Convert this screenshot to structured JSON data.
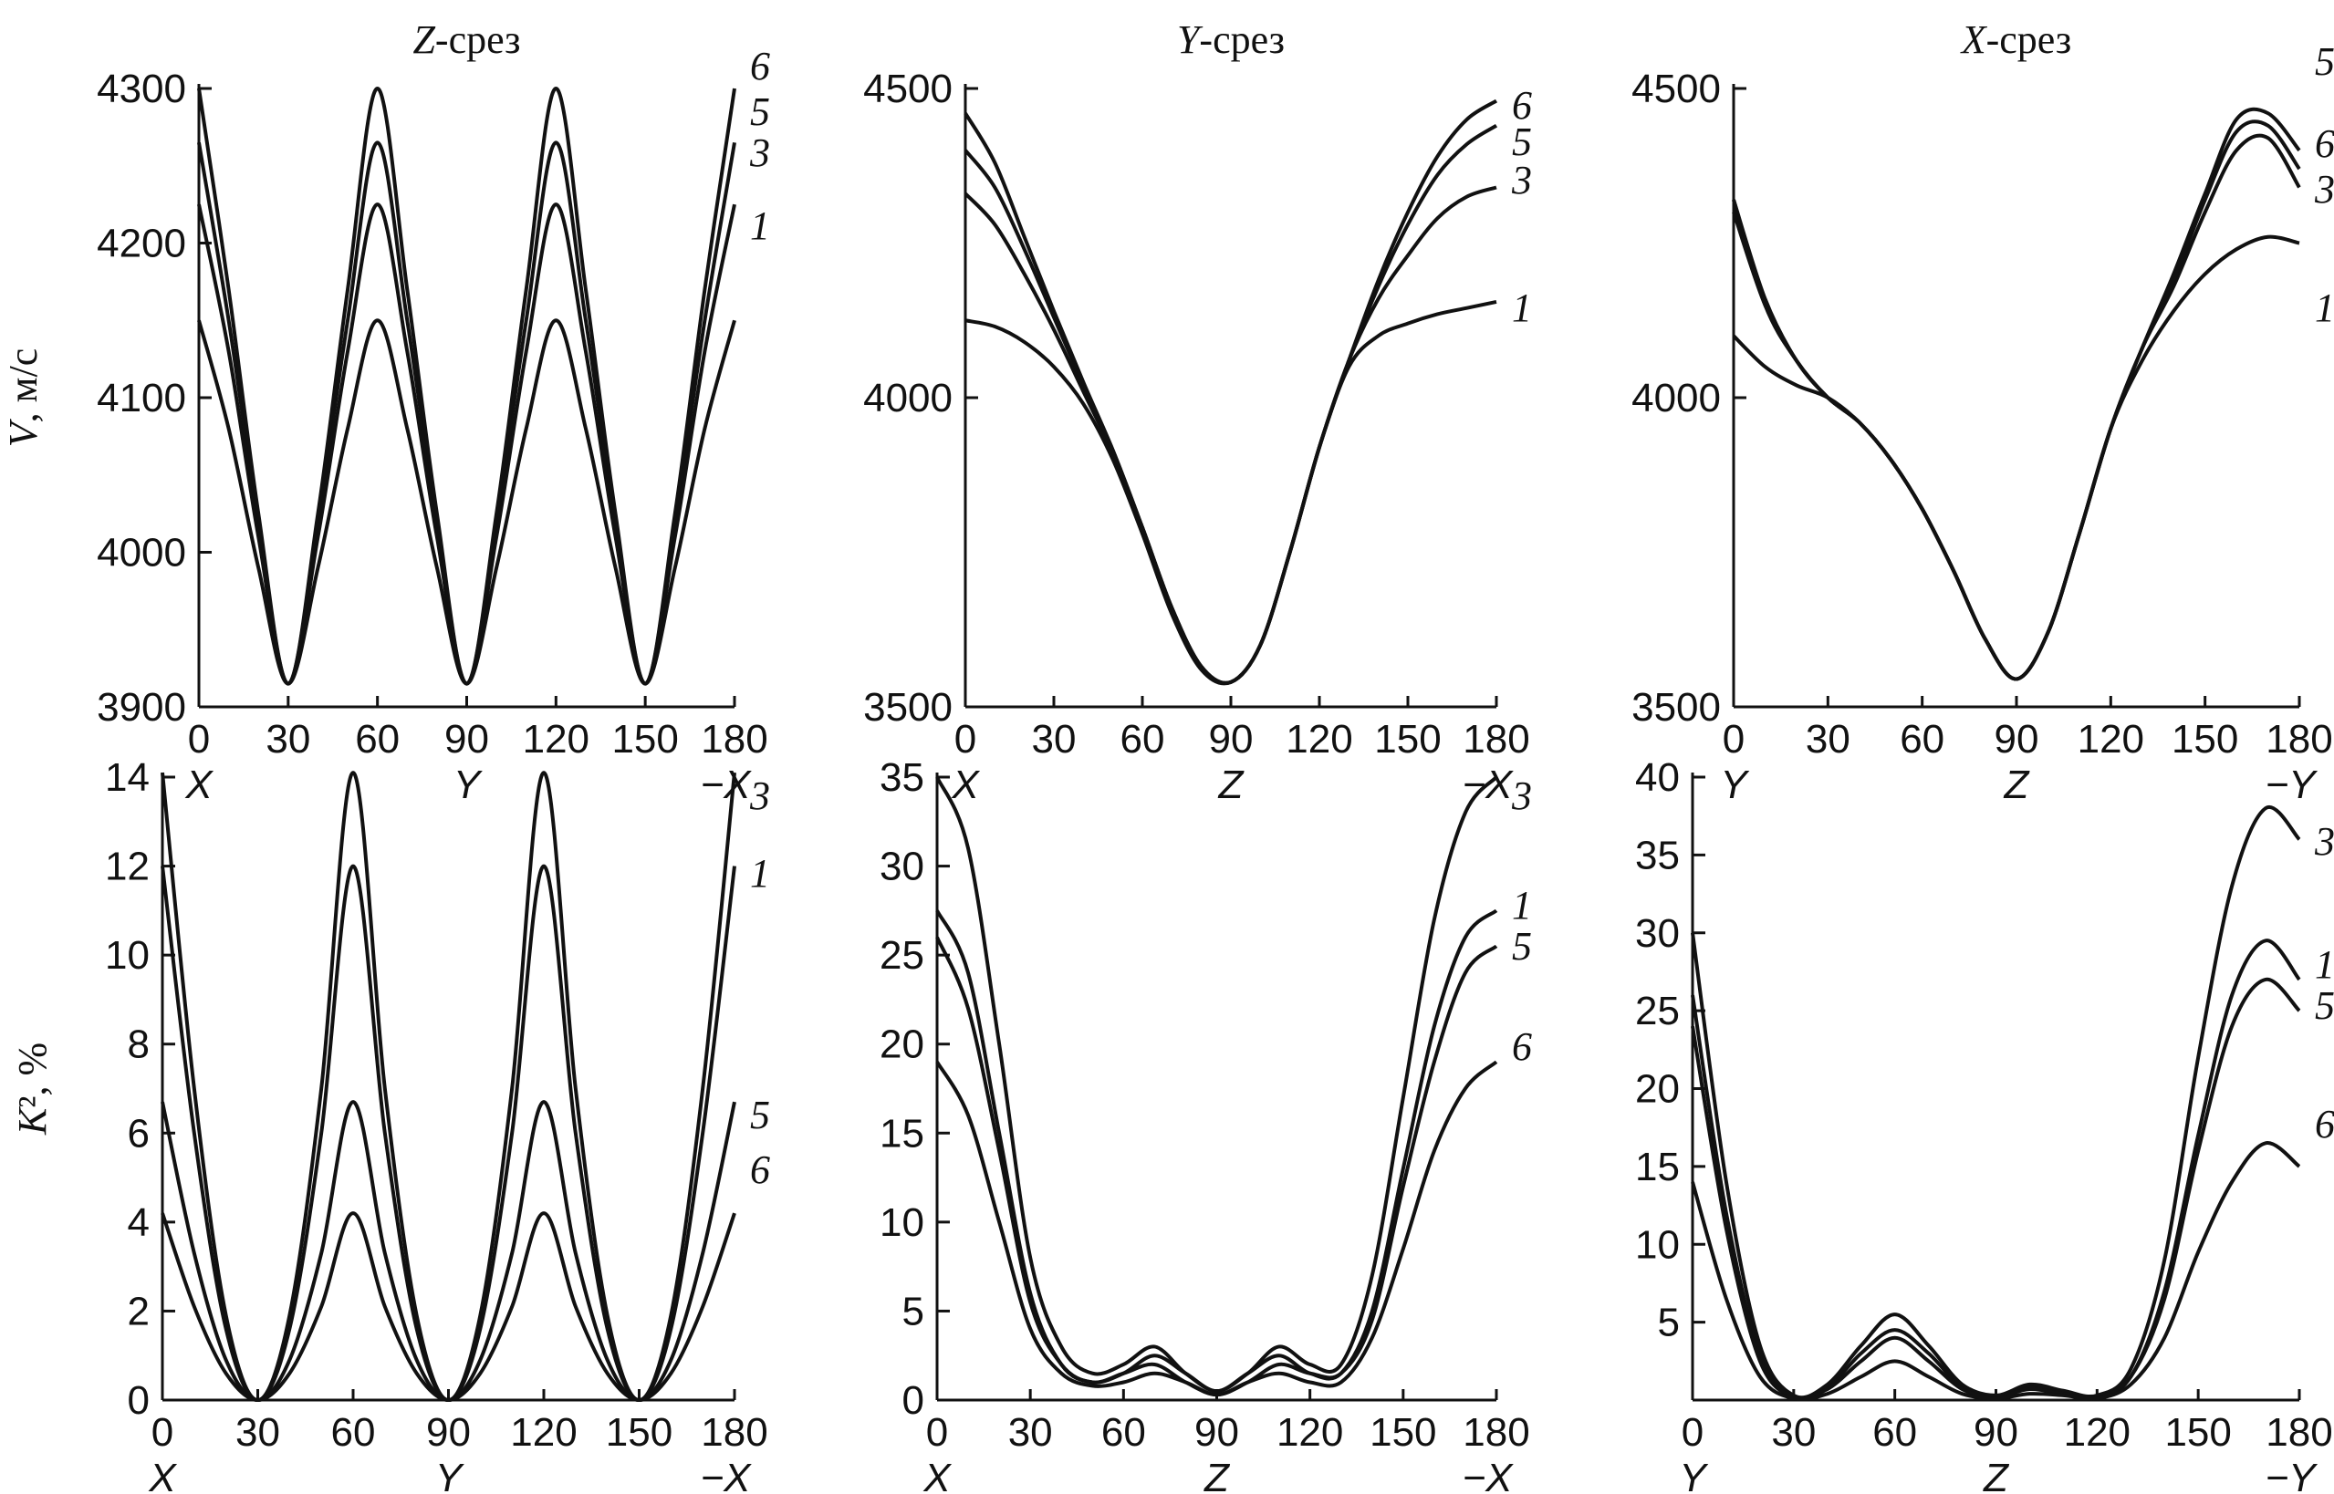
{
  "chart_data": [
    {
      "type": "line",
      "title": "Z-срез",
      "title_italic": "Z",
      "title_rest": "-срез",
      "ylabel": "V, м/с",
      "ylabel_italic": "V",
      "ylabel_rest": ", м/с",
      "ylim": [
        3900,
        4300
      ],
      "yticks": [
        "3900",
        "4000",
        "4100",
        "4200",
        "4300"
      ],
      "xlim": [
        0,
        180
      ],
      "xticks": [
        "0",
        "30",
        "60",
        "90",
        "120",
        "150",
        "180"
      ],
      "x_dir_labels": [
        "X",
        "Y",
        "−X"
      ],
      "x": [
        0,
        10,
        20,
        30,
        40,
        50,
        60,
        70,
        80,
        90,
        100,
        110,
        120,
        130,
        140,
        150,
        160,
        170,
        180
      ],
      "series": [
        {
          "name": "1",
          "values": [
            4150,
            4080,
            3990,
            3915,
            3990,
            4080,
            4150,
            4080,
            3990,
            3915,
            3990,
            4080,
            4150,
            4080,
            3990,
            3915,
            3990,
            4080,
            4150
          ]
        },
        {
          "name": "3",
          "values": [
            4225,
            4130,
            4010,
            3915,
            4010,
            4130,
            4225,
            4130,
            4010,
            3915,
            4010,
            4130,
            4225,
            4130,
            4010,
            3915,
            4010,
            4130,
            4225
          ]
        },
        {
          "name": "5",
          "values": [
            4265,
            4150,
            4020,
            3915,
            4020,
            4150,
            4265,
            4150,
            4020,
            3915,
            4020,
            4150,
            4265,
            4150,
            4020,
            3915,
            4020,
            4150,
            4265
          ]
        },
        {
          "name": "6",
          "values": [
            4300,
            4170,
            4025,
            3915,
            4025,
            4170,
            4300,
            4170,
            4025,
            3915,
            4025,
            4170,
            4300,
            4170,
            4025,
            3915,
            4025,
            4170,
            4300
          ]
        }
      ]
    },
    {
      "type": "line",
      "title": "Y-срез",
      "title_italic": "Y",
      "title_rest": "-срез",
      "ylim": [
        3500,
        4500
      ],
      "yticks": [
        "3500",
        "4000",
        "4500"
      ],
      "xlim": [
        0,
        180
      ],
      "xticks": [
        "0",
        "30",
        "60",
        "90",
        "120",
        "150",
        "180"
      ],
      "x_dir_labels": [
        "X",
        "Z",
        "−X"
      ],
      "x": [
        0,
        10,
        20,
        30,
        40,
        50,
        60,
        70,
        80,
        90,
        100,
        110,
        120,
        130,
        140,
        150,
        160,
        170,
        180
      ],
      "series": [
        {
          "name": "1",
          "values": [
            4125,
            4115,
            4090,
            4050,
            3990,
            3900,
            3780,
            3650,
            3560,
            3540,
            3600,
            3750,
            3920,
            4050,
            4100,
            4120,
            4135,
            4145,
            4155
          ]
        },
        {
          "name": "3",
          "values": [
            4330,
            4280,
            4200,
            4110,
            4010,
            3910,
            3790,
            3660,
            3565,
            3540,
            3600,
            3750,
            3920,
            4060,
            4160,
            4230,
            4290,
            4325,
            4340
          ]
        },
        {
          "name": "5",
          "values": [
            4400,
            4340,
            4240,
            4130,
            4020,
            3915,
            3790,
            3660,
            3565,
            3540,
            3600,
            3750,
            3920,
            4060,
            4180,
            4280,
            4360,
            4410,
            4440
          ]
        },
        {
          "name": "6",
          "values": [
            4460,
            4380,
            4260,
            4140,
            4025,
            3915,
            3790,
            3660,
            3565,
            3540,
            3600,
            3750,
            3920,
            4060,
            4190,
            4300,
            4390,
            4450,
            4480
          ]
        }
      ]
    },
    {
      "type": "line",
      "title": "X-срез",
      "title_italic": "X",
      "title_rest": "-срез",
      "ylim": [
        3500,
        4500
      ],
      "yticks": [
        "3500",
        "4000",
        "4500"
      ],
      "xlim": [
        0,
        180
      ],
      "xticks": [
        "0",
        "30",
        "60",
        "90",
        "120",
        "150",
        "180"
      ],
      "x_dir_labels": [
        "Y",
        "Z",
        "−Y"
      ],
      "x": [
        0,
        10,
        20,
        30,
        40,
        50,
        60,
        70,
        80,
        90,
        100,
        110,
        120,
        130,
        140,
        150,
        160,
        170,
        180
      ],
      "series": [
        {
          "name": "1",
          "values": [
            4100,
            4050,
            4020,
            4000,
            3960,
            3900,
            3820,
            3720,
            3610,
            3545,
            3620,
            3780,
            3950,
            4060,
            4140,
            4200,
            4240,
            4260,
            4250
          ]
        },
        {
          "name": "3",
          "values": [
            4320,
            4150,
            4060,
            4000,
            3960,
            3900,
            3820,
            3720,
            3610,
            3545,
            3620,
            3780,
            3950,
            4080,
            4180,
            4300,
            4400,
            4420,
            4340
          ]
        },
        {
          "name": "5",
          "values": [
            4320,
            4160,
            4060,
            4000,
            3960,
            3900,
            3820,
            3720,
            3610,
            3545,
            3620,
            3780,
            3950,
            4080,
            4200,
            4330,
            4450,
            4460,
            4400
          ]
        },
        {
          "name": "6",
          "values": [
            4300,
            4150,
            4060,
            4000,
            3960,
            3900,
            3820,
            3720,
            3610,
            3545,
            3620,
            3780,
            3950,
            4080,
            4190,
            4320,
            4430,
            4440,
            4370
          ]
        }
      ]
    },
    {
      "type": "line",
      "ylabel": "K², %",
      "ylabel_italic": "K",
      "ylabel_rest": "², %",
      "ylim": [
        0,
        14
      ],
      "yticks": [
        "0",
        "2",
        "4",
        "6",
        "8",
        "10",
        "12",
        "14"
      ],
      "xlim": [
        0,
        180
      ],
      "xticks": [
        "0",
        "30",
        "60",
        "90",
        "120",
        "150",
        "180"
      ],
      "x_dir_labels": [
        "X",
        "Y",
        "−X"
      ],
      "x": [
        0,
        10,
        20,
        30,
        40,
        50,
        60,
        70,
        80,
        90,
        100,
        110,
        120,
        130,
        140,
        150,
        160,
        170,
        180
      ],
      "series": [
        {
          "name": "1",
          "values": [
            12,
            6,
            1.6,
            0,
            1.6,
            6,
            12,
            6,
            1.6,
            0,
            1.6,
            6,
            12,
            6,
            1.6,
            0,
            1.6,
            6,
            12
          ]
        },
        {
          "name": "3",
          "values": [
            14.1,
            7,
            1.9,
            0,
            1.9,
            7,
            14.1,
            7,
            1.9,
            0,
            1.9,
            7,
            14.1,
            7,
            1.9,
            0,
            1.9,
            7,
            14.1
          ]
        },
        {
          "name": "5",
          "values": [
            6.7,
            3.3,
            0.9,
            0,
            0.9,
            3.3,
            6.7,
            3.3,
            0.9,
            0,
            0.9,
            3.3,
            6.7,
            3.3,
            0.9,
            0,
            0.9,
            3.3,
            6.7
          ]
        },
        {
          "name": "6",
          "values": [
            4.2,
            2.1,
            0.6,
            0,
            0.6,
            2.1,
            4.2,
            2.1,
            0.6,
            0,
            0.6,
            2.1,
            4.2,
            2.1,
            0.6,
            0,
            0.6,
            2.1,
            4.2
          ]
        }
      ]
    },
    {
      "type": "line",
      "ylim": [
        0,
        35
      ],
      "yticks": [
        "0",
        "5",
        "10",
        "15",
        "20",
        "25",
        "30",
        "35"
      ],
      "xlim": [
        0,
        180
      ],
      "xticks": [
        "0",
        "30",
        "60",
        "90",
        "120",
        "150",
        "180"
      ],
      "x_dir_labels": [
        "X",
        "Z",
        "−X"
      ],
      "x": [
        0,
        10,
        20,
        30,
        40,
        50,
        60,
        70,
        80,
        90,
        100,
        110,
        120,
        130,
        140,
        150,
        160,
        170,
        180
      ],
      "series": [
        {
          "name": "1",
          "values": [
            27.5,
            24,
            15,
            6,
            2,
            1,
            1.5,
            2.5,
            1.5,
            0.5,
            1.5,
            2.5,
            1.5,
            1.5,
            5,
            13,
            21,
            26,
            27.5
          ]
        },
        {
          "name": "3",
          "values": [
            35,
            31,
            20,
            8,
            3,
            1.5,
            2,
            3,
            1.5,
            0.5,
            1.5,
            3,
            2,
            2,
            7,
            17,
            27,
            33,
            35
          ]
        },
        {
          "name": "5",
          "values": [
            26,
            22,
            14,
            5.5,
            2,
            1,
            1.5,
            2,
            1,
            0.3,
            1,
            2,
            1.5,
            1.5,
            4.5,
            12,
            19,
            24,
            25.5
          ]
        },
        {
          "name": "6",
          "values": [
            19,
            16,
            10,
            4,
            1.5,
            0.8,
            1,
            1.5,
            1,
            0.3,
            1,
            1.5,
            1,
            1,
            3.5,
            8.5,
            14,
            17.5,
            19
          ]
        }
      ]
    },
    {
      "type": "line",
      "ylim": [
        0,
        40
      ],
      "yticks": [
        "5",
        "10",
        "15",
        "20",
        "25",
        "30",
        "35",
        "40"
      ],
      "xlim": [
        0,
        180
      ],
      "xticks": [
        "0",
        "30",
        "60",
        "90",
        "120",
        "150",
        "180"
      ],
      "x_dir_labels": [
        "Y",
        "Z",
        "−Y"
      ],
      "x": [
        0,
        10,
        20,
        30,
        40,
        50,
        60,
        70,
        80,
        90,
        100,
        110,
        120,
        130,
        140,
        150,
        160,
        170,
        180
      ],
      "series": [
        {
          "name": "1",
          "values": [
            26,
            12,
            3,
            0.2,
            0.8,
            3,
            4.5,
            3,
            0.8,
            0.2,
            0.8,
            0.5,
            0.2,
            1.5,
            7,
            17,
            26,
            29.5,
            27
          ]
        },
        {
          "name": "3",
          "values": [
            30,
            14,
            3.5,
            0.3,
            1,
            3.5,
            5.5,
            3.5,
            1,
            0.3,
            1,
            0.6,
            0.3,
            2,
            9,
            22,
            33,
            38,
            36
          ]
        },
        {
          "name": "5",
          "values": [
            24,
            11,
            2.5,
            0.2,
            0.7,
            2.5,
            4,
            2.5,
            0.7,
            0.2,
            0.7,
            0.4,
            0.2,
            1.5,
            6.5,
            16,
            24,
            27,
            25
          ]
        },
        {
          "name": "6",
          "values": [
            14,
            6.5,
            1.5,
            0.1,
            0.4,
            1.5,
            2.5,
            1.5,
            0.4,
            0.1,
            0.4,
            0.3,
            0.1,
            1,
            4,
            9.5,
            14,
            16.5,
            15
          ]
        }
      ]
    }
  ]
}
